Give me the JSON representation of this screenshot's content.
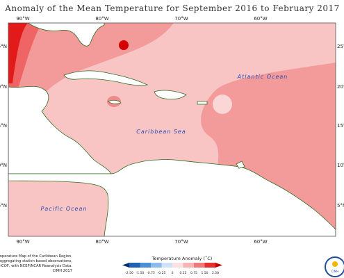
{
  "title": "Anomaly of the Mean Temperature for September 2016 to February 2017",
  "longitude_labels": [
    "90°W",
    "80°W",
    "70°W",
    "60°W"
  ],
  "latitude_labels": [
    "25°N",
    "20°N",
    "15°N",
    "10°N",
    "5°N"
  ],
  "ocean_labels": [
    "Atlantic Ocean",
    "Caribbean Sea",
    "Pacific Ocean"
  ],
  "legend": {
    "title": "Temperature Anomaly (˚C)",
    "ticks": [
      "-2.50",
      "-1.50",
      "-0.75",
      "-0.25",
      "0",
      "0.25",
      "0.75",
      "1.50",
      "2.50"
    ]
  },
  "credits": [
    "Temperature Map of the Caribbean Region.",
    "Created by aggregating station based observations,",
    "provided by CariCOF, with NCEP/NCAR Reanalysis Data.",
    "CIMH 2017"
  ],
  "logo": {
    "label": "CIMH"
  }
}
